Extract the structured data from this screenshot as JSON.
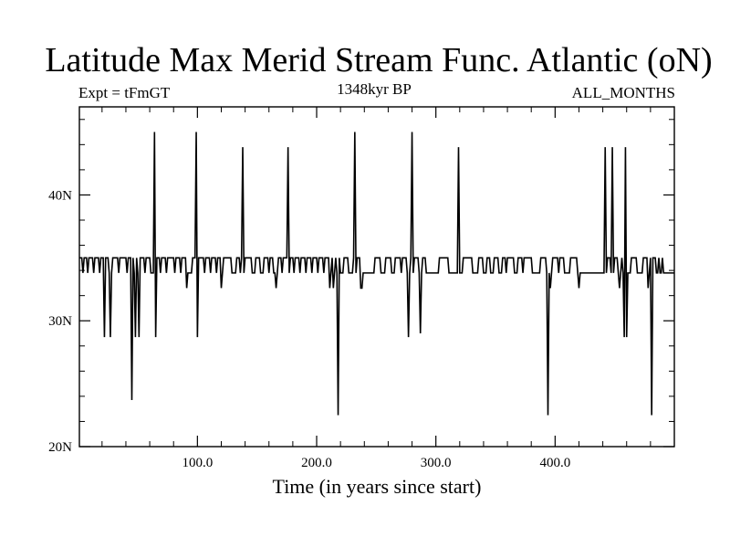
{
  "header": {
    "title": "Latitude Max Merid Stream Func. Atlantic (oN)",
    "left_label": "Expt = tFmGT",
    "center_label": "1348kyr BP",
    "right_label": "ALL_MONTHS"
  },
  "chart_data": {
    "type": "line",
    "title": "Latitude Max Merid Stream Func. Atlantic (oN)",
    "xlabel": "Time (in years since start)",
    "ylabel": "",
    "xlim": [
      1,
      500
    ],
    "ylim": [
      20,
      47
    ],
    "x_ticks": [
      100,
      200,
      300,
      400
    ],
    "x_tick_labels": [
      "100.0",
      "200.0",
      "300.0",
      "400.0"
    ],
    "y_ticks": [
      20,
      30,
      40
    ],
    "y_tick_labels": [
      "20N",
      "30N",
      "40N"
    ],
    "line_color": "#000000",
    "series": [
      {
        "values": [
          [
            1,
            35
          ],
          [
            3,
            35
          ],
          [
            4,
            33.8
          ],
          [
            5,
            35
          ],
          [
            7,
            35
          ],
          [
            8,
            33.8
          ],
          [
            9,
            35
          ],
          [
            12,
            35
          ],
          [
            13,
            33.8
          ],
          [
            14,
            35
          ],
          [
            17,
            35
          ],
          [
            18,
            33.8
          ],
          [
            19,
            35
          ],
          [
            21,
            35
          ],
          [
            22,
            28.7
          ],
          [
            23,
            35
          ],
          [
            25,
            35
          ],
          [
            26,
            33.8
          ],
          [
            27,
            28.7
          ],
          [
            28,
            33.8
          ],
          [
            29,
            35
          ],
          [
            33,
            35
          ],
          [
            34,
            33.8
          ],
          [
            35,
            35
          ],
          [
            40,
            35
          ],
          [
            41,
            33.8
          ],
          [
            42,
            35
          ],
          [
            44,
            35
          ],
          [
            45,
            23.7
          ],
          [
            46,
            35
          ],
          [
            47,
            33.8
          ],
          [
            48,
            28.7
          ],
          [
            49,
            35
          ],
          [
            50,
            33.8
          ],
          [
            51,
            28.7
          ],
          [
            52,
            35
          ],
          [
            55,
            35
          ],
          [
            56,
            33.8
          ],
          [
            57,
            35
          ],
          [
            60,
            35
          ],
          [
            61,
            33.8
          ],
          [
            63,
            33.8
          ],
          [
            64,
            45
          ],
          [
            65,
            28.7
          ],
          [
            66,
            35
          ],
          [
            68,
            35
          ],
          [
            69,
            33.8
          ],
          [
            70,
            35
          ],
          [
            73,
            35
          ],
          [
            74,
            33.8
          ],
          [
            75,
            35
          ],
          [
            80,
            35
          ],
          [
            81,
            33.8
          ],
          [
            82,
            35
          ],
          [
            85,
            35
          ],
          [
            86,
            33.8
          ],
          [
            87,
            35
          ],
          [
            90,
            35
          ],
          [
            91,
            32.6
          ],
          [
            92,
            33.8
          ],
          [
            95,
            33.8
          ],
          [
            96,
            35
          ],
          [
            98,
            35
          ],
          [
            99,
            45
          ],
          [
            100,
            28.7
          ],
          [
            101,
            35
          ],
          [
            105,
            35
          ],
          [
            106,
            33.8
          ],
          [
            107,
            35
          ],
          [
            110,
            35
          ],
          [
            111,
            33.8
          ],
          [
            112,
            35
          ],
          [
            115,
            35
          ],
          [
            116,
            33.8
          ],
          [
            117,
            35
          ],
          [
            119,
            35
          ],
          [
            120,
            32.6
          ],
          [
            121,
            33.8
          ],
          [
            122,
            35
          ],
          [
            128,
            35
          ],
          [
            129,
            33.8
          ],
          [
            132,
            33.8
          ],
          [
            133,
            35
          ],
          [
            135,
            35
          ],
          [
            136,
            33.8
          ],
          [
            137,
            35
          ],
          [
            138,
            43.8
          ],
          [
            139,
            33.8
          ],
          [
            140,
            35
          ],
          [
            145,
            35
          ],
          [
            146,
            33.8
          ],
          [
            148,
            33.8
          ],
          [
            149,
            35
          ],
          [
            152,
            35
          ],
          [
            153,
            33.8
          ],
          [
            155,
            33.8
          ],
          [
            156,
            35
          ],
          [
            159,
            35
          ],
          [
            160,
            33.8
          ],
          [
            161,
            35
          ],
          [
            163,
            35
          ],
          [
            164,
            33.8
          ],
          [
            165,
            33.8
          ],
          [
            166,
            32.6
          ],
          [
            167,
            33.8
          ],
          [
            168,
            35
          ],
          [
            170,
            35
          ],
          [
            171,
            33.8
          ],
          [
            172,
            35
          ],
          [
            175,
            35
          ],
          [
            176,
            43.8
          ],
          [
            177,
            33.8
          ],
          [
            178,
            35
          ],
          [
            180,
            35
          ],
          [
            181,
            33.8
          ],
          [
            182,
            35
          ],
          [
            185,
            35
          ],
          [
            186,
            33.8
          ],
          [
            187,
            35
          ],
          [
            190,
            35
          ],
          [
            191,
            33.8
          ],
          [
            192,
            35
          ],
          [
            195,
            35
          ],
          [
            196,
            33.8
          ],
          [
            197,
            35
          ],
          [
            200,
            35
          ],
          [
            201,
            33.8
          ],
          [
            202,
            35
          ],
          [
            205,
            35
          ],
          [
            206,
            33.8
          ],
          [
            207,
            35
          ],
          [
            210,
            35
          ],
          [
            211,
            32.6
          ],
          [
            212,
            33.8
          ],
          [
            213,
            35
          ],
          [
            214,
            32.6
          ],
          [
            215,
            33.8
          ],
          [
            216,
            35
          ],
          [
            217,
            33.8
          ],
          [
            218,
            22.5
          ],
          [
            219,
            35
          ],
          [
            220,
            33.8
          ],
          [
            222,
            33.8
          ],
          [
            223,
            35
          ],
          [
            226,
            35
          ],
          [
            227,
            33.8
          ],
          [
            230,
            33.8
          ],
          [
            231,
            35
          ],
          [
            232,
            45
          ],
          [
            233,
            33.8
          ],
          [
            234,
            35
          ],
          [
            236,
            35
          ],
          [
            237,
            32.6
          ],
          [
            238,
            32.6
          ],
          [
            239,
            33.8
          ],
          [
            248,
            33.8
          ],
          [
            249,
            35
          ],
          [
            253,
            35
          ],
          [
            254,
            33.8
          ],
          [
            257,
            33.8
          ],
          [
            258,
            35
          ],
          [
            262,
            35
          ],
          [
            263,
            33.8
          ],
          [
            265,
            33.8
          ],
          [
            266,
            35
          ],
          [
            270,
            35
          ],
          [
            271,
            33.8
          ],
          [
            272,
            35
          ],
          [
            275,
            35
          ],
          [
            276,
            33.8
          ],
          [
            277,
            28.7
          ],
          [
            278,
            33.8
          ],
          [
            279,
            35
          ],
          [
            280,
            45
          ],
          [
            281,
            33.8
          ],
          [
            282,
            35
          ],
          [
            285,
            35
          ],
          [
            286,
            33.8
          ],
          [
            287,
            29
          ],
          [
            288,
            33.8
          ],
          [
            289,
            35
          ],
          [
            291,
            35
          ],
          [
            292,
            33.8
          ],
          [
            302,
            33.8
          ],
          [
            303,
            35
          ],
          [
            310,
            35
          ],
          [
            311,
            33.8
          ],
          [
            318,
            33.8
          ],
          [
            319,
            43.8
          ],
          [
            320,
            33.8
          ],
          [
            322,
            33.8
          ],
          [
            323,
            35
          ],
          [
            330,
            35
          ],
          [
            331,
            33.8
          ],
          [
            335,
            33.8
          ],
          [
            336,
            35
          ],
          [
            339,
            35
          ],
          [
            340,
            33.8
          ],
          [
            342,
            33.8
          ],
          [
            343,
            35
          ],
          [
            345,
            35
          ],
          [
            346,
            33.8
          ],
          [
            348,
            33.8
          ],
          [
            349,
            35
          ],
          [
            352,
            35
          ],
          [
            353,
            33.8
          ],
          [
            355,
            33.8
          ],
          [
            356,
            35
          ],
          [
            358,
            35
          ],
          [
            359,
            33.8
          ],
          [
            360,
            35
          ],
          [
            365,
            35
          ],
          [
            366,
            33.8
          ],
          [
            368,
            33.8
          ],
          [
            369,
            35
          ],
          [
            372,
            35
          ],
          [
            373,
            33.8
          ],
          [
            374,
            35
          ],
          [
            380,
            35
          ],
          [
            381,
            33.8
          ],
          [
            387,
            33.8
          ],
          [
            388,
            35
          ],
          [
            392,
            35
          ],
          [
            393,
            33.8
          ],
          [
            394,
            22.5
          ],
          [
            395,
            33.8
          ],
          [
            396,
            32.6
          ],
          [
            397,
            33.8
          ],
          [
            398,
            35
          ],
          [
            402,
            35
          ],
          [
            403,
            33.8
          ],
          [
            404,
            35
          ],
          [
            407,
            35
          ],
          [
            408,
            33.8
          ],
          [
            412,
            33.8
          ],
          [
            413,
            35
          ],
          [
            418,
            35
          ],
          [
            419,
            33.8
          ],
          [
            420,
            32.6
          ],
          [
            421,
            33.8
          ],
          [
            441,
            33.8
          ],
          [
            442,
            43.8
          ],
          [
            443,
            33.8
          ],
          [
            444,
            35
          ],
          [
            446,
            35
          ],
          [
            447,
            33.8
          ],
          [
            448,
            43.8
          ],
          [
            449,
            33.8
          ],
          [
            450,
            35
          ],
          [
            452,
            35
          ],
          [
            453,
            33.8
          ],
          [
            454,
            32.6
          ],
          [
            455,
            33.8
          ],
          [
            456,
            35
          ],
          [
            457,
            33.8
          ],
          [
            458,
            28.7
          ],
          [
            459,
            43.8
          ],
          [
            460,
            28.7
          ],
          [
            461,
            33.8
          ],
          [
            463,
            33.8
          ],
          [
            464,
            35
          ],
          [
            468,
            35
          ],
          [
            469,
            33.8
          ],
          [
            473,
            33.8
          ],
          [
            474,
            35
          ],
          [
            477,
            35
          ],
          [
            478,
            32.6
          ],
          [
            479,
            33.8
          ],
          [
            480,
            35
          ],
          [
            481,
            22.5
          ],
          [
            482,
            35
          ],
          [
            484,
            35
          ],
          [
            485,
            33.8
          ],
          [
            486,
            33.8
          ],
          [
            487,
            35
          ],
          [
            488,
            33.8
          ],
          [
            489,
            33.8
          ],
          [
            490,
            35
          ],
          [
            491,
            33.8
          ],
          [
            500,
            33.8
          ]
        ]
      }
    ]
  }
}
